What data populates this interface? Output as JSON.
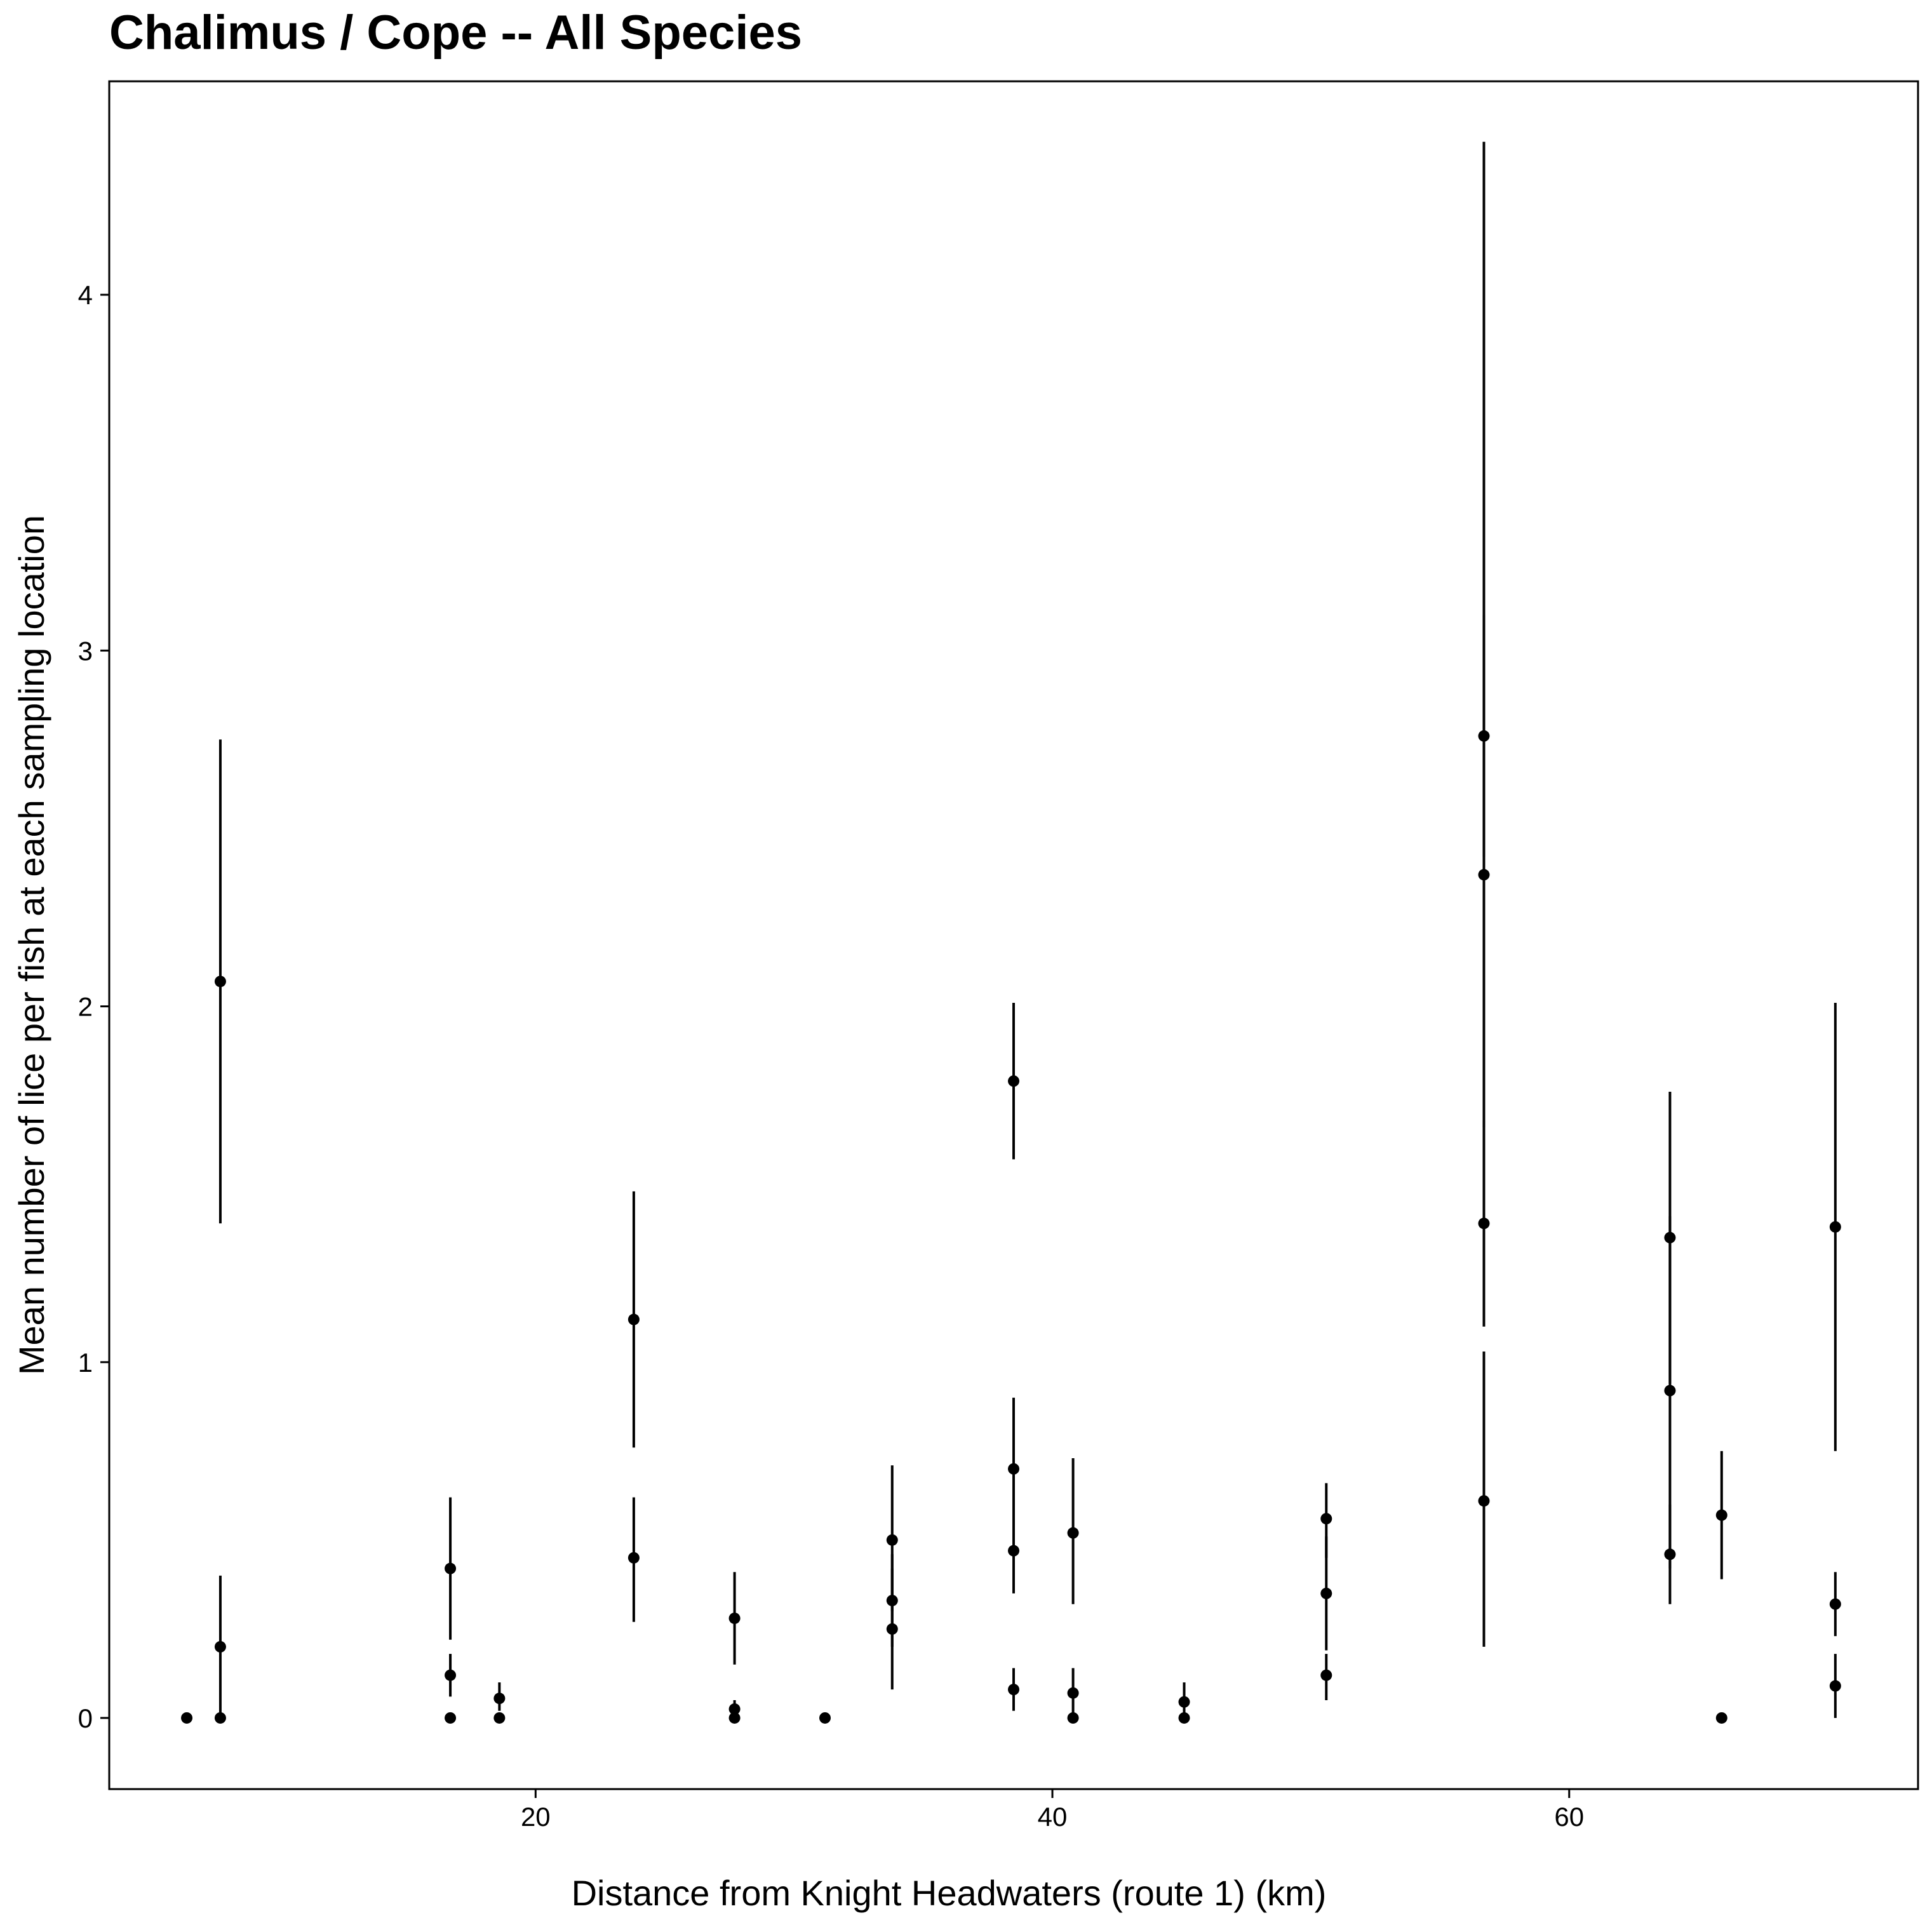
{
  "chart_data": {
    "type": "scatter",
    "title": "Chalimus / Cope -- All Species",
    "xlabel": "Distance from Knight Headwaters (route 1) (km)",
    "ylabel": "Mean number of lice per fish at each sampling location",
    "xlim": [
      3.5,
      73.5
    ],
    "ylim": [
      -0.2,
      4.6
    ],
    "xticks": [
      20,
      40,
      60
    ],
    "yticks": [
      0,
      1,
      2,
      3,
      4
    ],
    "grid": false,
    "legend": "none",
    "series": [
      {
        "name": "sampling locations",
        "points": [
          {
            "x": 6.5,
            "y": 0,
            "lo": null,
            "hi": null
          },
          {
            "x": 7.8,
            "y": 2.07,
            "lo": 1.39,
            "hi": 2.75
          },
          {
            "x": 7.8,
            "y": 0.2,
            "lo": 0.0,
            "hi": 0.4
          },
          {
            "x": 7.8,
            "y": 0,
            "lo": null,
            "hi": null
          },
          {
            "x": 16.7,
            "y": 0.42,
            "lo": 0.22,
            "hi": 0.62
          },
          {
            "x": 16.7,
            "y": 0.12,
            "lo": 0.06,
            "hi": 0.18
          },
          {
            "x": 16.7,
            "y": 0,
            "lo": null,
            "hi": null
          },
          {
            "x": 18.6,
            "y": 0.055,
            "lo": 0.02,
            "hi": 0.1
          },
          {
            "x": 18.6,
            "y": 0,
            "lo": null,
            "hi": null
          },
          {
            "x": 23.8,
            "y": 1.12,
            "lo": 0.76,
            "hi": 1.48
          },
          {
            "x": 23.8,
            "y": 0.45,
            "lo": 0.27,
            "hi": 0.62
          },
          {
            "x": 27.7,
            "y": 0.28,
            "lo": 0.15,
            "hi": 0.41
          },
          {
            "x": 27.7,
            "y": 0.025,
            "lo": 0.0,
            "hi": 0.05
          },
          {
            "x": 27.7,
            "y": 0,
            "lo": null,
            "hi": null
          },
          {
            "x": 31.2,
            "y": 0,
            "lo": null,
            "hi": null
          },
          {
            "x": 33.8,
            "y": 0.5,
            "lo": 0.3,
            "hi": 0.71
          },
          {
            "x": 33.8,
            "y": 0.33,
            "lo": 0.2,
            "hi": 0.46
          },
          {
            "x": 33.8,
            "y": 0.25,
            "lo": 0.08,
            "hi": 0.42
          },
          {
            "x": 38.5,
            "y": 1.79,
            "lo": 1.57,
            "hi": 2.01
          },
          {
            "x": 38.5,
            "y": 0.7,
            "lo": 0.5,
            "hi": 0.9
          },
          {
            "x": 38.5,
            "y": 0.47,
            "lo": 0.35,
            "hi": 0.6
          },
          {
            "x": 38.5,
            "y": 0.08,
            "lo": 0.02,
            "hi": 0.14
          },
          {
            "x": 40.8,
            "y": 0.52,
            "lo": 0.32,
            "hi": 0.73
          },
          {
            "x": 40.8,
            "y": 0.07,
            "lo": 0.0,
            "hi": 0.14
          },
          {
            "x": 40.8,
            "y": 0,
            "lo": null,
            "hi": null
          },
          {
            "x": 45.1,
            "y": 0.045,
            "lo": 0.0,
            "hi": 0.1
          },
          {
            "x": 45.1,
            "y": 0,
            "lo": null,
            "hi": null
          },
          {
            "x": 50.6,
            "y": 0.56,
            "lo": 0.45,
            "hi": 0.66
          },
          {
            "x": 50.6,
            "y": 0.35,
            "lo": 0.19,
            "hi": 0.51
          },
          {
            "x": 50.6,
            "y": 0.12,
            "lo": 0.05,
            "hi": 0.18
          },
          {
            "x": 56.7,
            "y": 2.76,
            "lo": 2.42,
            "hi": 3.1
          },
          {
            "x": 56.7,
            "y": 2.37,
            "lo": 1.66,
            "hi": 4.43
          },
          {
            "x": 56.7,
            "y": 1.39,
            "lo": 1.1,
            "hi": 1.68
          },
          {
            "x": 56.7,
            "y": 0.61,
            "lo": 0.2,
            "hi": 1.03
          },
          {
            "x": 63.9,
            "y": 1.35,
            "lo": 0.94,
            "hi": 1.76
          },
          {
            "x": 63.9,
            "y": 0.92,
            "lo": 0.42,
            "hi": 1.41
          },
          {
            "x": 63.9,
            "y": 0.46,
            "lo": 0.32,
            "hi": 0.6
          },
          {
            "x": 65.9,
            "y": 0.57,
            "lo": 0.39,
            "hi": 0.75
          },
          {
            "x": 65.9,
            "y": 0,
            "lo": null,
            "hi": null
          },
          {
            "x": 70.3,
            "y": 1.38,
            "lo": 0.75,
            "hi": 2.01
          },
          {
            "x": 70.3,
            "y": 0.32,
            "lo": 0.23,
            "hi": 0.41
          },
          {
            "x": 70.3,
            "y": 0.09,
            "lo": 0.0,
            "hi": 0.18
          }
        ]
      }
    ]
  }
}
